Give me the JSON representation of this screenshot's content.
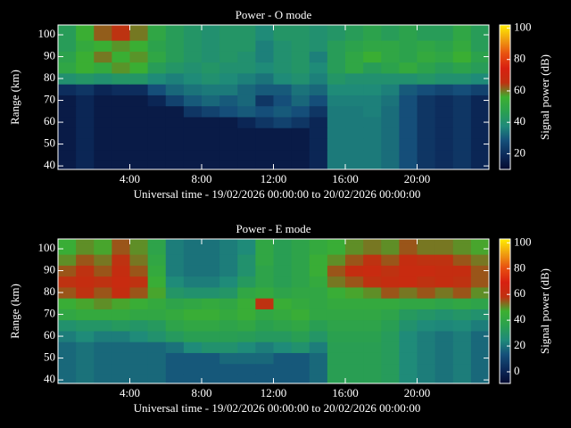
{
  "chart_data": [
    {
      "type": "heatmap",
      "title": "Power - O mode",
      "xlabel": "Universal time - 19/02/2026 00:00:00 to 20/02/2026 00:00:00",
      "ylabel": "Range (km)",
      "colorbar_label": "Signal power (dB)",
      "xlim": [
        0,
        24
      ],
      "xticks": [
        {
          "value": 4,
          "label": "4:00"
        },
        {
          "value": 8,
          "label": "8:00"
        },
        {
          "value": 12,
          "label": "12:00"
        },
        {
          "value": 16,
          "label": "16:00"
        },
        {
          "value": 20,
          "label": "20:00"
        }
      ],
      "ylim": [
        38.4,
        104.5
      ],
      "yticks": [
        40,
        50,
        60,
        70,
        80,
        90,
        100
      ],
      "zlim": [
        10,
        102
      ],
      "cticks": [
        20,
        40,
        60,
        80,
        100
      ],
      "colormap": [
        "#050a30",
        "#0c2a5a",
        "#15507a",
        "#1f8a7a",
        "#2aa050",
        "#3cb030",
        "#c03010",
        "#d82010",
        "#e85010",
        "#f0a010",
        "#ffee00"
      ],
      "xbins": [
        0,
        1,
        2,
        3,
        4,
        5,
        6,
        7,
        8,
        9,
        10,
        11,
        12,
        13,
        14,
        15,
        16,
        17,
        18,
        19,
        20,
        21,
        22,
        23,
        24
      ],
      "ybins": [
        37.5,
        42.5,
        47.5,
        52.5,
        57.5,
        62.5,
        67.5,
        72.5,
        77.5,
        82.5,
        87.5,
        92.5,
        97.5,
        102.5,
        107.5
      ],
      "z": [
        [
          15,
          18,
          15,
          15,
          15,
          15,
          15,
          15,
          15,
          15,
          15,
          15,
          15,
          15,
          18,
          35,
          35,
          35,
          33,
          28,
          22,
          20,
          22,
          18
        ],
        [
          15,
          18,
          15,
          15,
          15,
          15,
          15,
          15,
          15,
          15,
          15,
          15,
          15,
          15,
          18,
          35,
          35,
          35,
          33,
          28,
          22,
          20,
          22,
          18
        ],
        [
          15,
          18,
          15,
          15,
          15,
          15,
          15,
          15,
          15,
          15,
          15,
          15,
          15,
          15,
          18,
          35,
          35,
          35,
          33,
          28,
          22,
          20,
          22,
          18
        ],
        [
          15,
          18,
          15,
          15,
          15,
          15,
          15,
          15,
          15,
          15,
          15,
          15,
          15,
          15,
          18,
          35,
          35,
          35,
          33,
          28,
          22,
          20,
          22,
          18
        ],
        [
          15,
          18,
          15,
          15,
          15,
          15,
          15,
          15,
          15,
          15,
          18,
          22,
          25,
          22,
          18,
          35,
          35,
          35,
          33,
          28,
          22,
          20,
          22,
          18
        ],
        [
          15,
          18,
          15,
          15,
          15,
          15,
          15,
          22,
          25,
          28,
          30,
          28,
          30,
          28,
          22,
          35,
          35,
          36,
          33,
          28,
          22,
          20,
          22,
          18
        ],
        [
          15,
          18,
          15,
          15,
          15,
          18,
          25,
          30,
          32,
          30,
          32,
          22,
          28,
          32,
          28,
          36,
          36,
          36,
          34,
          28,
          22,
          20,
          22,
          18
        ],
        [
          20,
          22,
          18,
          20,
          20,
          28,
          32,
          34,
          35,
          35,
          32,
          30,
          30,
          34,
          32,
          38,
          38,
          38,
          36,
          30,
          28,
          26,
          28,
          25
        ],
        [
          40,
          42,
          40,
          42,
          42,
          38,
          36,
          38,
          40,
          38,
          36,
          34,
          38,
          40,
          36,
          42,
          40,
          40,
          40,
          40,
          42,
          40,
          40,
          38
        ],
        [
          50,
          55,
          52,
          58,
          55,
          45,
          42,
          40,
          42,
          40,
          40,
          38,
          40,
          42,
          38,
          45,
          50,
          45,
          48,
          52,
          48,
          45,
          48,
          45
        ],
        [
          48,
          55,
          60,
          55,
          58,
          50,
          45,
          42,
          40,
          42,
          40,
          36,
          40,
          42,
          36,
          45,
          50,
          55,
          50,
          48,
          52,
          50,
          55,
          48
        ],
        [
          45,
          52,
          55,
          58,
          55,
          48,
          45,
          42,
          40,
          42,
          42,
          36,
          40,
          42,
          40,
          45,
          48,
          50,
          50,
          48,
          50,
          48,
          52,
          45
        ],
        [
          45,
          55,
          62,
          65,
          60,
          50,
          45,
          42,
          40,
          42,
          42,
          38,
          42,
          42,
          40,
          42,
          45,
          48,
          45,
          48,
          45,
          45,
          50,
          45
        ],
        [
          45,
          55,
          62,
          65,
          60,
          50,
          45,
          42,
          40,
          42,
          42,
          38,
          42,
          42,
          40,
          42,
          45,
          48,
          45,
          48,
          45,
          45,
          50,
          45
        ]
      ]
    },
    {
      "type": "heatmap",
      "title": "Power - E mode",
      "xlabel": "Universal time - 19/02/2026 00:00:00 to 20/02/2026 00:00:00",
      "ylabel": "Range (km)",
      "colorbar_label": "Signal power (dB)",
      "xlim": [
        0,
        24
      ],
      "xticks": [
        {
          "value": 4,
          "label": "4:00"
        },
        {
          "value": 8,
          "label": "8:00"
        },
        {
          "value": 12,
          "label": "12:00"
        },
        {
          "value": 16,
          "label": "16:00"
        },
        {
          "value": 20,
          "label": "20:00"
        }
      ],
      "ylim": [
        38.4,
        104.5
      ],
      "yticks": [
        40,
        50,
        60,
        70,
        80,
        90,
        100
      ],
      "zlim": [
        -9,
        103
      ],
      "cticks": [
        0,
        20,
        40,
        60,
        80,
        100
      ],
      "colormap": [
        "#050a30",
        "#0c2a5a",
        "#15507a",
        "#1f8a7a",
        "#2aa050",
        "#3cb030",
        "#c03010",
        "#d82010",
        "#e85010",
        "#f0a010",
        "#ffee00"
      ],
      "xbins": [
        0,
        1,
        2,
        3,
        4,
        5,
        6,
        7,
        8,
        9,
        10,
        11,
        12,
        13,
        14,
        15,
        16,
        17,
        18,
        19,
        20,
        21,
        22,
        23,
        24
      ],
      "ybins": [
        37.5,
        42.5,
        47.5,
        52.5,
        57.5,
        62.5,
        67.5,
        72.5,
        77.5,
        82.5,
        87.5,
        92.5,
        97.5,
        102.5,
        107.5
      ],
      "z": [
        [
          18,
          20,
          18,
          18,
          18,
          18,
          15,
          15,
          15,
          15,
          15,
          15,
          15,
          15,
          18,
          35,
          35,
          35,
          33,
          25,
          22,
          20,
          22,
          18
        ],
        [
          18,
          20,
          18,
          18,
          18,
          18,
          15,
          15,
          15,
          15,
          15,
          15,
          15,
          15,
          18,
          35,
          35,
          35,
          33,
          25,
          22,
          20,
          22,
          18
        ],
        [
          18,
          20,
          18,
          18,
          18,
          18,
          15,
          15,
          15,
          18,
          18,
          18,
          15,
          15,
          18,
          35,
          35,
          35,
          33,
          25,
          22,
          20,
          22,
          18
        ],
        [
          18,
          20,
          18,
          18,
          18,
          18,
          20,
          25,
          28,
          28,
          25,
          22,
          25,
          28,
          22,
          35,
          35,
          35,
          33,
          25,
          22,
          20,
          22,
          18
        ],
        [
          22,
          25,
          22,
          22,
          25,
          28,
          32,
          35,
          35,
          35,
          34,
          32,
          32,
          35,
          30,
          36,
          36,
          36,
          33,
          25,
          22,
          20,
          22,
          18
        ],
        [
          28,
          30,
          30,
          32,
          30,
          32,
          38,
          40,
          40,
          38,
          40,
          36,
          38,
          40,
          35,
          38,
          38,
          38,
          35,
          28,
          25,
          24,
          25,
          22
        ],
        [
          40,
          42,
          42,
          42,
          40,
          40,
          42,
          45,
          45,
          42,
          45,
          40,
          42,
          45,
          40,
          40,
          40,
          40,
          38,
          32,
          30,
          28,
          30,
          28
        ],
        [
          45,
          48,
          50,
          48,
          45,
          42,
          38,
          40,
          42,
          40,
          45,
          58,
          45,
          42,
          40,
          42,
          42,
          42,
          42,
          40,
          40,
          38,
          40,
          38
        ],
        [
          55,
          58,
          55,
          60,
          55,
          48,
          30,
          28,
          28,
          30,
          40,
          42,
          38,
          40,
          40,
          45,
          48,
          50,
          55,
          52,
          55,
          52,
          55,
          50
        ],
        [
          58,
          60,
          58,
          62,
          58,
          45,
          25,
          22,
          22,
          25,
          32,
          38,
          35,
          38,
          42,
          52,
          55,
          58,
          60,
          62,
          58,
          60,
          58,
          55
        ],
        [
          55,
          58,
          55,
          60,
          55,
          42,
          22,
          20,
          20,
          22,
          28,
          38,
          35,
          38,
          45,
          55,
          60,
          62,
          58,
          62,
          62,
          60,
          60,
          55
        ],
        [
          50,
          55,
          52,
          58,
          52,
          40,
          22,
          20,
          20,
          22,
          28,
          40,
          35,
          38,
          45,
          50,
          55,
          58,
          55,
          60,
          58,
          58,
          55,
          52
        ],
        [
          45,
          50,
          48,
          55,
          50,
          38,
          22,
          20,
          20,
          22,
          25,
          40,
          35,
          38,
          42,
          45,
          50,
          52,
          50,
          55,
          52,
          52,
          50,
          48
        ],
        [
          45,
          50,
          48,
          55,
          50,
          38,
          22,
          20,
          20,
          22,
          25,
          40,
          35,
          38,
          42,
          45,
          50,
          52,
          50,
          55,
          52,
          52,
          50,
          48
        ]
      ]
    }
  ]
}
